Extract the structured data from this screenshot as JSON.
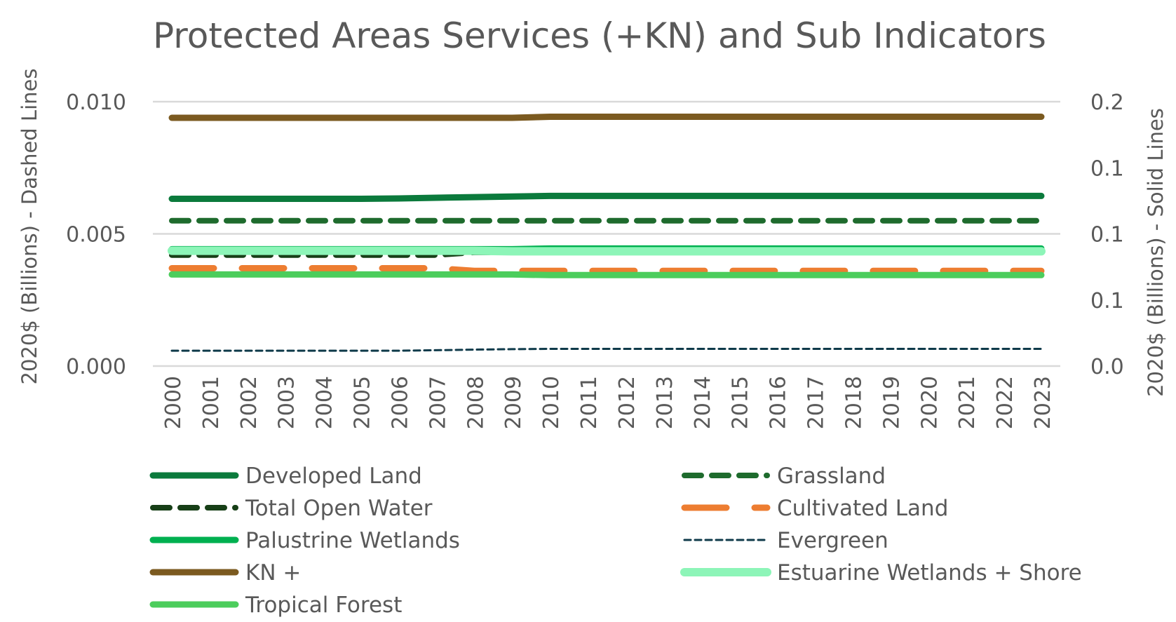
{
  "chart_data": {
    "type": "line",
    "title": "Protected Areas Services (+KN) and Sub Indicators",
    "ylabel_left": "2020$ (Billions) - Dashed Lines",
    "ylabel_right": "2020$ (Billions) - Solid Lines",
    "x": [
      "2000",
      "2001",
      "2002",
      "2003",
      "2004",
      "2005",
      "2006",
      "2007",
      "2008",
      "2009",
      "2010",
      "2011",
      "2012",
      "2013",
      "2014",
      "2015",
      "2016",
      "2017",
      "2018",
      "2019",
      "2020",
      "2021",
      "2022",
      "2023"
    ],
    "ylim_left": [
      0,
      0.01
    ],
    "yticks_left": [
      "0.000",
      "0.005",
      "0.010"
    ],
    "ylim_right": [
      0,
      0.2
    ],
    "yticks_right": [
      "0.0",
      "0.1",
      "0.1",
      "0.1",
      "0.2"
    ],
    "grid": "horizontal",
    "legend_position": "bottom",
    "series": [
      {
        "name": "Developed Land",
        "axis": "right",
        "style": "solid",
        "color": "#0B7A3C",
        "values": [
          0.1265,
          0.1265,
          0.1265,
          0.1265,
          0.1265,
          0.1265,
          0.1268,
          0.1273,
          0.1278,
          0.1283,
          0.1287,
          0.1287,
          0.1287,
          0.1287,
          0.1287,
          0.1287,
          0.1287,
          0.1287,
          0.1287,
          0.1287,
          0.1287,
          0.1287,
          0.1287,
          0.1287
        ]
      },
      {
        "name": "Grassland",
        "axis": "left",
        "style": "dashed",
        "color": "#1E6B2D",
        "values": [
          0.0055,
          0.0055,
          0.0055,
          0.0055,
          0.0055,
          0.0055,
          0.0055,
          0.0055,
          0.0055,
          0.0055,
          0.0055,
          0.0055,
          0.0055,
          0.0055,
          0.0055,
          0.0055,
          0.0055,
          0.0055,
          0.0055,
          0.0055,
          0.0055,
          0.0055,
          0.0055,
          0.0055
        ]
      },
      {
        "name": "Total Open Water",
        "axis": "left",
        "style": "dashed",
        "color": "#173F17",
        "values": [
          0.0042,
          0.0042,
          0.0042,
          0.0042,
          0.0042,
          0.0042,
          0.0042,
          0.0042,
          0.0043,
          0.0043,
          0.0043,
          0.0043,
          0.0043,
          0.0043,
          0.0043,
          0.0043,
          0.0043,
          0.0043,
          0.0043,
          0.0043,
          0.0043,
          0.0043,
          0.0043,
          0.0043
        ]
      },
      {
        "name": "Cultivated  Land",
        "axis": "left",
        "style": "dashed",
        "color": "#ED7D31",
        "values": [
          0.0037,
          0.0037,
          0.0037,
          0.0037,
          0.0037,
          0.0037,
          0.0037,
          0.0037,
          0.0036,
          0.0036,
          0.0036,
          0.0036,
          0.0036,
          0.0036,
          0.0036,
          0.0036,
          0.0036,
          0.0036,
          0.0036,
          0.0036,
          0.0036,
          0.0036,
          0.0036,
          0.0036
        ]
      },
      {
        "name": "Palustrine Wetlands",
        "axis": "right",
        "style": "solid",
        "color": "#00B050",
        "values": [
          0.0884,
          0.0884,
          0.0884,
          0.0884,
          0.0884,
          0.0884,
          0.0884,
          0.0884,
          0.0884,
          0.0884,
          0.0889,
          0.0889,
          0.0889,
          0.0889,
          0.0889,
          0.0889,
          0.0889,
          0.0889,
          0.0889,
          0.0889,
          0.0889,
          0.0889,
          0.0889,
          0.0889
        ]
      },
      {
        "name": "Evergreen",
        "axis": "left",
        "style": "dashed",
        "color": "#0F3A4A",
        "values": [
          0.00058,
          0.00058,
          0.00058,
          0.00058,
          0.00058,
          0.00058,
          0.00058,
          0.0006,
          0.00062,
          0.00064,
          0.00065,
          0.00065,
          0.00065,
          0.00065,
          0.00065,
          0.00065,
          0.00065,
          0.00065,
          0.00065,
          0.00065,
          0.00065,
          0.00065,
          0.00065,
          0.00065
        ]
      },
      {
        "name": "KN +",
        "axis": "right",
        "style": "solid",
        "color": "#7B5A20",
        "values": [
          0.1878,
          0.1878,
          0.1878,
          0.1878,
          0.1878,
          0.1878,
          0.1878,
          0.1878,
          0.1878,
          0.1878,
          0.1886,
          0.1886,
          0.1886,
          0.1886,
          0.1886,
          0.1886,
          0.1886,
          0.1886,
          0.1886,
          0.1886,
          0.1886,
          0.1886,
          0.1886,
          0.1886
        ]
      },
      {
        "name": "Estuarine Wetlands + Shore",
        "axis": "right",
        "style": "solid",
        "color": "#8DF5B8",
        "values": [
          0.0872,
          0.0872,
          0.0872,
          0.0872,
          0.0872,
          0.0872,
          0.0872,
          0.0872,
          0.0872,
          0.0868,
          0.0868,
          0.0868,
          0.0868,
          0.0868,
          0.0868,
          0.0868,
          0.0868,
          0.0868,
          0.0868,
          0.0868,
          0.0868,
          0.0868,
          0.0868,
          0.0868
        ]
      },
      {
        "name": "Tropical Forest",
        "axis": "right",
        "style": "solid",
        "color": "#4CCD5C",
        "values": [
          0.0693,
          0.0693,
          0.0693,
          0.0693,
          0.0693,
          0.0693,
          0.0693,
          0.0693,
          0.0693,
          0.0693,
          0.0688,
          0.0688,
          0.0688,
          0.0688,
          0.0688,
          0.0688,
          0.0688,
          0.0688,
          0.0688,
          0.0688,
          0.0688,
          0.0688,
          0.0688,
          0.0688
        ]
      }
    ]
  }
}
